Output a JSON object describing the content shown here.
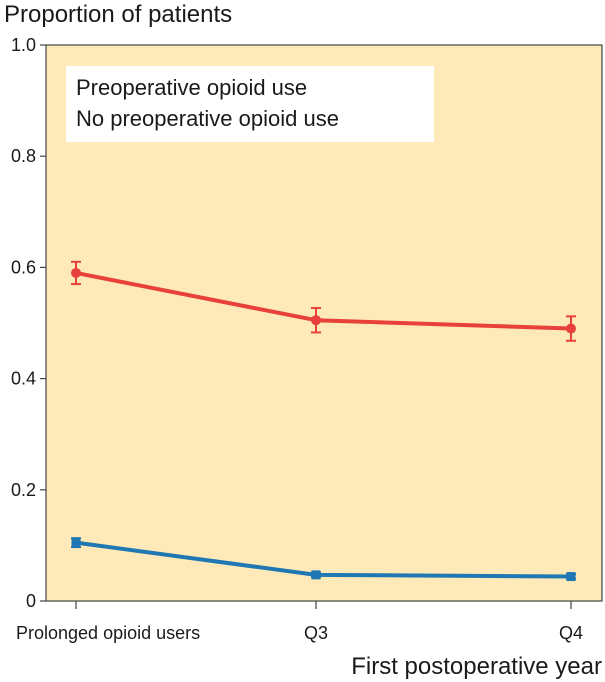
{
  "chart_data": {
    "type": "line",
    "title": "",
    "ylabel": "Proportion of patients",
    "xlabel": "First postoperative year",
    "categories": [
      "Prolonged opioid users",
      "Q3",
      "Q4"
    ],
    "ylim": [
      0,
      1.0
    ],
    "yticks": [
      0,
      0.2,
      0.4,
      0.6,
      0.8,
      1.0
    ],
    "ytick_labels": [
      "0",
      "0.2",
      "0.4",
      "0.6",
      "0.8",
      "1.0"
    ],
    "background_color": "#fdeab8",
    "legend_position": "top-left",
    "series": [
      {
        "name": "Preoperative opioid use",
        "color": "#e8403a",
        "values": [
          0.59,
          0.505,
          0.49
        ],
        "error": [
          0.02,
          0.022,
          0.022
        ]
      },
      {
        "name": "No preoperative opioid use",
        "color": "#1f77b4",
        "values": [
          0.105,
          0.047,
          0.044
        ],
        "error": [
          0.008,
          0.004,
          0.004
        ]
      }
    ]
  }
}
